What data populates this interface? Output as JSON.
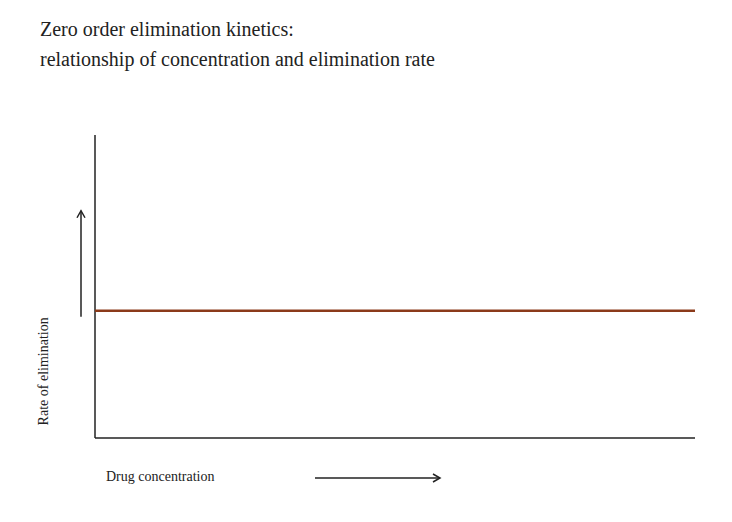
{
  "chart_data": {
    "type": "line",
    "title": "Zero order elimination kinetics:",
    "subtitle": "relationship of concentration and elimination rate",
    "x_label": "Drug concentration",
    "y_label": "Rate of elimination",
    "x": [
      0,
      1
    ],
    "values": [
      0.42,
      0.42
    ],
    "color": "#8B3A1A",
    "xlim": [
      0,
      1
    ],
    "ylim": [
      0,
      1
    ],
    "tick_labels": false,
    "grid": false
  }
}
